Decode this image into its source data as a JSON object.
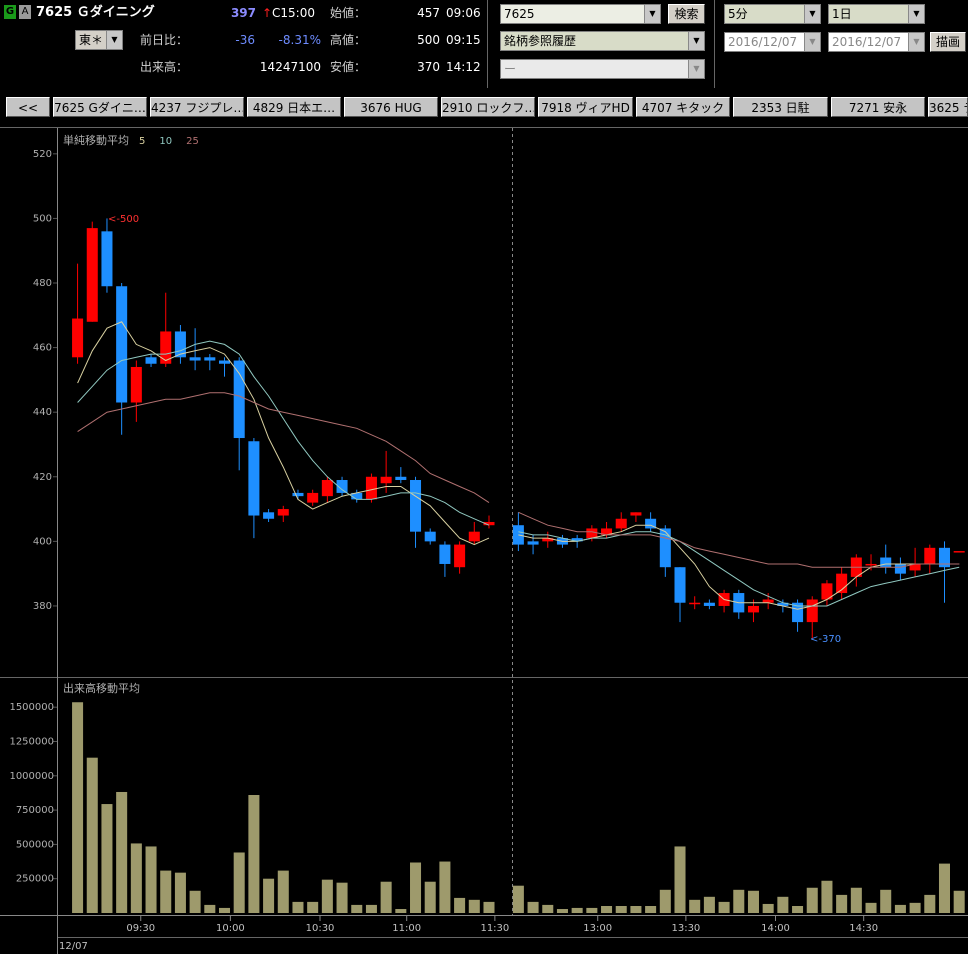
{
  "header": {
    "badge_g": "G",
    "badge_a": "A",
    "stock": "7625 Ｇダイニング",
    "price": "397",
    "arrow": "↑",
    "price_time": "C15:00",
    "market": "東＊",
    "change_label": "前日比：",
    "change": "-36",
    "change_pct": "-8.31%",
    "volume_label": "出来高：",
    "volume": "14247100",
    "open_label": "始値：",
    "open": "457",
    "open_time": "09:06",
    "high_label": "高値：",
    "high": "500",
    "high_time": "09:15",
    "low_label": "安値：",
    "low": "370",
    "low_time": "14:12",
    "code_input": "7625",
    "search_button": "検索",
    "history_select": "銘柄参照履歴",
    "sub_select": "ー",
    "interval": "5分",
    "span": "1日",
    "date_from": "2016/12/07",
    "date_to": "2016/12/07",
    "draw_button": "描画"
  },
  "tabs": [
    "<<",
    "7625 Gダイニ…",
    "4237 フジプレ…",
    "4829 日本エ…",
    "3676 HUG",
    "2910 ロックフ…",
    "7918 ヴィアHD",
    "4707 キタック",
    "2353 日駐",
    "7271 安永",
    "3625 テ"
  ],
  "chart_data": [
    {
      "type": "candlestick",
      "title": "単純移動平均",
      "up_color": "#ff0000",
      "down_color": "#1e8fff",
      "open": [
        457,
        468,
        496,
        479,
        443,
        457,
        455,
        465,
        457,
        457,
        456,
        456,
        431,
        409,
        408,
        415,
        412,
        414,
        419,
        415,
        413,
        418,
        420,
        419,
        403,
        399,
        392,
        400,
        405,
        null,
        405,
        400,
        400,
        401,
        401,
        401,
        402,
        404,
        408,
        407,
        404,
        392,
        381,
        381,
        380,
        384,
        378,
        381,
        381,
        381,
        375,
        382,
        384,
        389,
        393,
        395,
        393,
        391,
        393,
        398,
        397
      ],
      "high": [
        486,
        499,
        500,
        480,
        456,
        458,
        477,
        467,
        466,
        458,
        457,
        457,
        432,
        410,
        411,
        416,
        416,
        420,
        420,
        416,
        421,
        428,
        423,
        420,
        404,
        400,
        400,
        406,
        408,
        null,
        409,
        402,
        403,
        402,
        402,
        405,
        406,
        409,
        409,
        409,
        405,
        392,
        383,
        382,
        385,
        385,
        382,
        384,
        382,
        382,
        383,
        388,
        392,
        396,
        396,
        399,
        395,
        398,
        399,
        400,
        397
      ],
      "low": [
        455,
        468,
        477,
        433,
        437,
        454,
        454,
        455,
        453,
        453,
        451,
        422,
        401,
        406,
        406,
        413,
        411,
        412,
        414,
        412,
        412,
        415,
        418,
        398,
        399,
        389,
        390,
        399,
        404,
        null,
        397,
        396,
        398,
        398,
        398,
        400,
        401,
        403,
        406,
        403,
        389,
        375,
        379,
        379,
        378,
        376,
        375,
        379,
        378,
        372,
        370,
        380,
        382,
        386,
        391,
        390,
        388,
        389,
        390,
        381,
        397
      ],
      "close": [
        469,
        497,
        479,
        443,
        454,
        455,
        465,
        457,
        456,
        456,
        455,
        432,
        408,
        407,
        410,
        414,
        415,
        419,
        415,
        413,
        420,
        420,
        419,
        403,
        400,
        393,
        399,
        403,
        406,
        null,
        399,
        399,
        401,
        399,
        400,
        404,
        404,
        407,
        409,
        404,
        392,
        381,
        381,
        380,
        384,
        378,
        380,
        382,
        380,
        375,
        382,
        387,
        390,
        395,
        393,
        392,
        390,
        393,
        398,
        392,
        397
      ],
      "series": [
        {
          "name": "5",
          "color": "#d8d0a0",
          "values": [
            449,
            459,
            466,
            468,
            461,
            459,
            456,
            458,
            459,
            460,
            458,
            452,
            444,
            432,
            423,
            413,
            410,
            412,
            414,
            415,
            416,
            417,
            417,
            414,
            411,
            406,
            401,
            399,
            401,
            null,
            402,
            401,
            401,
            400,
            400,
            401,
            402,
            403,
            405,
            405,
            403,
            398,
            393,
            386,
            382,
            381,
            381,
            381,
            380,
            379,
            380,
            382,
            385,
            389,
            392,
            393,
            393,
            393,
            393,
            393,
            393
          ]
        },
        {
          "name": "10",
          "color": "#90c8c0",
          "values": [
            443,
            448,
            453,
            456,
            457,
            458,
            458,
            459,
            461,
            462,
            461,
            458,
            451,
            445,
            438,
            431,
            425,
            420,
            416,
            413,
            413,
            414,
            415,
            415,
            414,
            412,
            409,
            407,
            405,
            null,
            403,
            402,
            402,
            401,
            400,
            401,
            401,
            402,
            403,
            403,
            402,
            400,
            397,
            394,
            391,
            388,
            385,
            383,
            381,
            380,
            380,
            380,
            382,
            384,
            386,
            387,
            388,
            389,
            390,
            391,
            392
          ]
        },
        {
          "name": "25",
          "color": "#b07070",
          "values": [
            434,
            437,
            440,
            441,
            442,
            443,
            444,
            444,
            445,
            446,
            446,
            445,
            443,
            441,
            440,
            439,
            438,
            437,
            436,
            435,
            433,
            431,
            428,
            425,
            421,
            419,
            417,
            415,
            412,
            null,
            409,
            407,
            405,
            404,
            403,
            403,
            402,
            402,
            402,
            402,
            401,
            400,
            398,
            397,
            396,
            395,
            394,
            393,
            393,
            393,
            392,
            392,
            392,
            392,
            392,
            392,
            392,
            393,
            393,
            393,
            393
          ]
        }
      ],
      "annotations": [
        "<-500",
        "<-370"
      ],
      "xlim": [
        -1.4,
        60.6
      ],
      "ylim": [
        358,
        528
      ],
      "yticks": [
        380,
        400,
        420,
        440,
        460,
        480,
        500,
        520
      ]
    },
    {
      "type": "bar",
      "title": "出来高移動平均",
      "color": "#9e9a6c",
      "values": [
        1536000,
        1132000,
        794000,
        882000,
        507000,
        485000,
        309000,
        294000,
        162000,
        59000,
        37000,
        441000,
        860000,
        250000,
        309000,
        81000,
        81000,
        243000,
        221000,
        59000,
        59000,
        228000,
        29000,
        368000,
        228000,
        375000,
        110000,
        96000,
        81000,
        null,
        199000,
        81000,
        59000,
        29000,
        37000,
        37000,
        51000,
        51000,
        51000,
        51000,
        169000,
        485000,
        96000,
        118000,
        81000,
        169000,
        162000,
        66000,
        118000,
        51000,
        184000,
        235000,
        132000,
        184000,
        74000,
        169000,
        59000,
        74000,
        132000,
        360000,
        162000
      ],
      "xlim": [
        -1.4,
        60.6
      ],
      "ylim": [
        0,
        1720000
      ],
      "yticks": [
        250000,
        500000,
        750000,
        1000000,
        1250000,
        1500000
      ],
      "xticks": [
        {
          "value": 4.3,
          "label": "09:30"
        },
        {
          "value": 10.4,
          "label": "10:00"
        },
        {
          "value": 16.5,
          "label": "10:30"
        },
        {
          "value": 22.4,
          "label": "11:00"
        },
        {
          "value": 28.4,
          "label": "11:30"
        },
        {
          "value": 35.4,
          "label": "13:00"
        },
        {
          "value": 41.4,
          "label": "13:30"
        },
        {
          "value": 47.5,
          "label": "14:00"
        },
        {
          "value": 53.5,
          "label": "14:30"
        }
      ],
      "date_label": "12/07"
    }
  ]
}
